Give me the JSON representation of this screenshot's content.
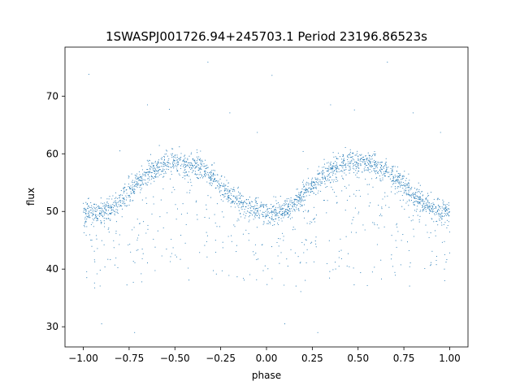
{
  "chart_data": {
    "type": "scatter",
    "title": "1SWASPJ001726.94+245703.1 Period 23196.86523s",
    "xlabel": "phase",
    "ylabel": "flux",
    "xlim": [
      -1.1,
      1.1
    ],
    "ylim": [
      26.5,
      78.5
    ],
    "xticks": [
      -1.0,
      -0.75,
      -0.5,
      -0.25,
      0.0,
      0.25,
      0.5,
      0.75,
      1.0
    ],
    "xtick_labels": [
      "−1.00",
      "−0.75",
      "−0.50",
      "−0.25",
      "0.00",
      "0.25",
      "0.50",
      "0.75",
      "1.00"
    ],
    "yticks": [
      30,
      40,
      50,
      60,
      70
    ],
    "ytick_labels": [
      "30",
      "40",
      "50",
      "60",
      "70"
    ],
    "grid": false,
    "marker_color": "#1f77b4",
    "series": [
      {
        "description_of_trend": "phase-folded light curve, two cycles",
        "x": [
          -1.0,
          -0.95,
          -0.9,
          -0.85,
          -0.8,
          -0.75,
          -0.7,
          -0.65,
          -0.6,
          -0.55,
          -0.5,
          -0.45,
          -0.4,
          -0.35,
          -0.3,
          -0.25,
          -0.2,
          -0.15,
          -0.1,
          -0.05,
          0.0,
          0.05,
          0.1,
          0.15,
          0.2,
          0.25,
          0.3,
          0.35,
          0.4,
          0.45,
          0.5,
          0.55,
          0.6,
          0.65,
          0.7,
          0.75,
          0.8,
          0.85,
          0.9,
          0.95,
          1.0
        ],
        "y": [
          50.0,
          49.8,
          50.0,
          50.6,
          51.8,
          53.4,
          55.0,
          56.5,
          57.6,
          58.3,
          58.6,
          58.5,
          58.0,
          57.2,
          56.0,
          54.6,
          53.0,
          51.6,
          50.6,
          50.0,
          49.8,
          49.9,
          50.4,
          51.3,
          52.8,
          54.4,
          55.9,
          57.1,
          58.0,
          58.5,
          58.6,
          58.4,
          57.9,
          57.1,
          56.0,
          54.6,
          53.1,
          51.8,
          50.8,
          50.2,
          50.0
        ]
      }
    ],
    "scatter_spread": {
      "core_sigma": 1.0,
      "outlier_fraction": 0.18,
      "outlier_range": [
        36,
        58
      ]
    },
    "sparse_points": [
      {
        "x": -0.97,
        "y": 73.8
      },
      {
        "x": -0.32,
        "y": 75.9
      },
      {
        "x": 0.03,
        "y": 73.6
      },
      {
        "x": 0.66,
        "y": 75.9
      },
      {
        "x": -0.8,
        "y": 60.5
      },
      {
        "x": 0.2,
        "y": 60.4
      },
      {
        "x": -0.53,
        "y": 67.7
      },
      {
        "x": 0.48,
        "y": 67.6
      },
      {
        "x": -0.9,
        "y": 30.5
      },
      {
        "x": 0.1,
        "y": 30.5
      },
      {
        "x": -0.72,
        "y": 29.0
      },
      {
        "x": 0.28,
        "y": 29.0
      },
      {
        "x": -0.05,
        "y": 63.7
      },
      {
        "x": 0.95,
        "y": 63.7
      },
      {
        "x": -0.2,
        "y": 67.1
      },
      {
        "x": 0.8,
        "y": 67.1
      },
      {
        "x": -0.65,
        "y": 68.5
      },
      {
        "x": 0.35,
        "y": 68.5
      }
    ]
  }
}
